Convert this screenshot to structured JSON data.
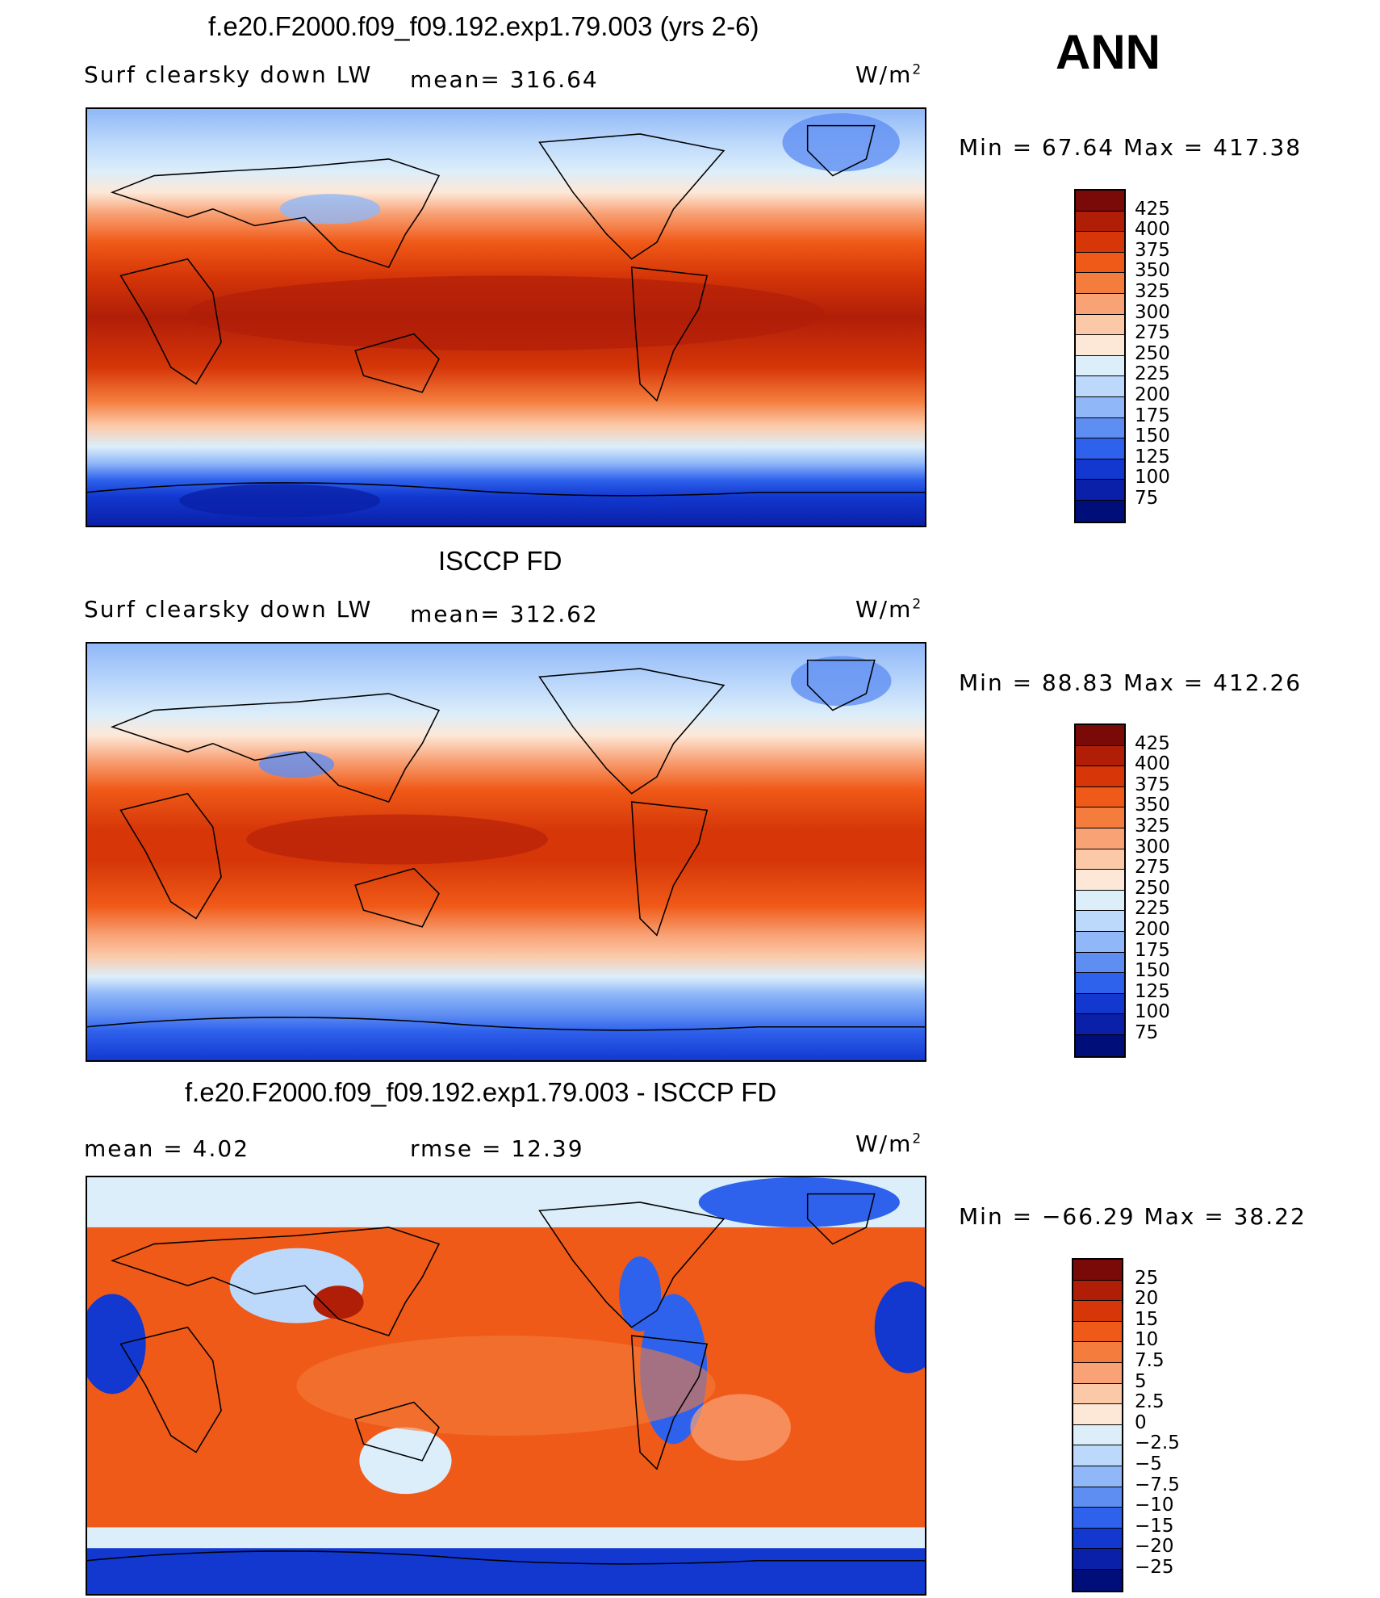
{
  "season": "ANN",
  "panels": [
    {
      "id": "model",
      "title": "f.e20.F2000.f09_f09.192.exp1.79.003 (yrs 2-6)",
      "left_label": "Surf clearsky down LW",
      "mid_label": "mean= 316.64",
      "units": "W/m",
      "units_sup": "2",
      "minmax": "Min =   67.64 Max = 417.38",
      "levels": [
        "425",
        "400",
        "375",
        "350",
        "325",
        "300",
        "275",
        "250",
        "225",
        "200",
        "175",
        "150",
        "125",
        "100",
        "75"
      ]
    },
    {
      "id": "obs",
      "title": "ISCCP FD",
      "left_label": "Surf clearsky down LW",
      "mid_label": "mean= 312.62",
      "units": "W/m",
      "units_sup": "2",
      "minmax": "Min =   88.83 Max = 412.26",
      "levels": [
        "425",
        "400",
        "375",
        "350",
        "325",
        "300",
        "275",
        "250",
        "225",
        "200",
        "175",
        "150",
        "125",
        "100",
        "75"
      ]
    },
    {
      "id": "diff",
      "title": "f.e20.F2000.f09_f09.192.exp1.79.003 - ISCCP FD",
      "left_label": "mean =    4.02",
      "mid_label": "rmse =   12.39",
      "units": "W/m",
      "units_sup": "2",
      "minmax": "Min = −66.29 Max =   38.22",
      "levels": [
        "25",
        "20",
        "15",
        "10",
        "7.5",
        "5",
        "2.5",
        "0",
        "−2.5",
        "−5",
        "−7.5",
        "−10",
        "−15",
        "−20",
        "−25"
      ]
    }
  ],
  "colors": {
    "scale": [
      "#7a0a08",
      "#b01e08",
      "#d63608",
      "#f05a18",
      "#f47c3c",
      "#f8a276",
      "#fcc9a8",
      "#fde8d8",
      "#dceefa",
      "#bcd8fb",
      "#90b8f8",
      "#5f8ef2",
      "#2f62ec",
      "#1238d0",
      "#0a20a8",
      "#000e7a"
    ]
  }
}
